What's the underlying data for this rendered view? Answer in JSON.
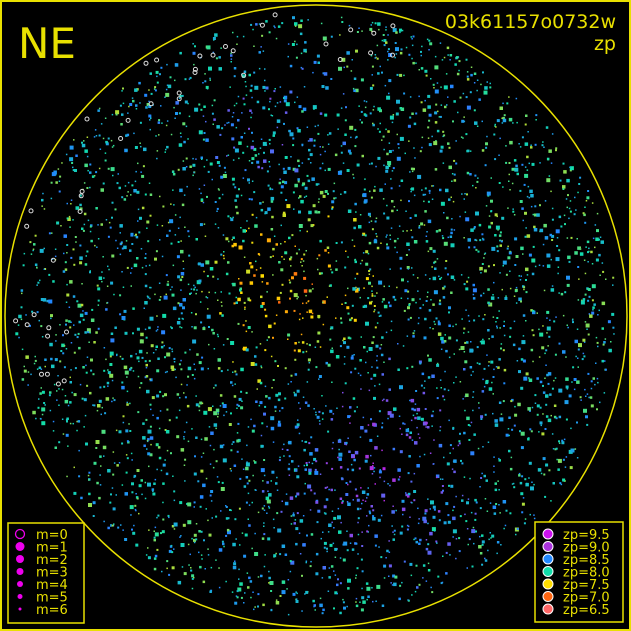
{
  "chart_data": {
    "type": "scatter",
    "title": "NE",
    "image_id": "03k61157o0732w",
    "quantity": "zp",
    "grid": false,
    "size_legend": {
      "placement": "bottom-left",
      "entries": [
        "m=0",
        "m=1",
        "m=2",
        "m=3",
        "m=4",
        "m=5",
        "m=6"
      ]
    },
    "color_legend": {
      "placement": "bottom-right",
      "entries": [
        {
          "label": "zp=9.5",
          "color": "#cc11ee"
        },
        {
          "label": "zp=9.0",
          "color": "#aa33dd"
        },
        {
          "label": "zp=8.5",
          "color": "#2288ff"
        },
        {
          "label": "zp=8.0",
          "color": "#11ddaa"
        },
        {
          "label": "zp=7.5",
          "color": "#ffdd00"
        },
        {
          "label": "zp=7.0",
          "color": "#ff6611"
        },
        {
          "label": "zp=6.5",
          "color": "#ff6666"
        }
      ]
    },
    "frame_color": "#e8e000"
  }
}
